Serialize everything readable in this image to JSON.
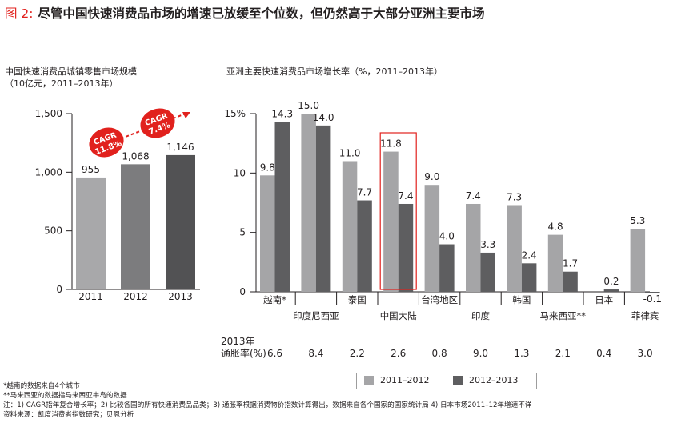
{
  "figure": {
    "label": "图 2:",
    "title": "尽管中国快速消费品市场的增速已放缓至个位数，但仍然高于大部分亚洲主要市场"
  },
  "left_chart": {
    "title_line1": "中国快速消费品城镇零售市场规模",
    "title_line2": "（10亿元，2011–2013年）",
    "cagr_badges": [
      {
        "text_line1": "CAGR",
        "text_line2": "11.8%"
      },
      {
        "text_line1": "CAGR",
        "text_line2": "7.4%"
      }
    ]
  },
  "right_chart": {
    "title": "亚洲主要快速消费品市场增长率（%，2011–2013年）",
    "inflation_label_line1": "2013年",
    "inflation_label_line2": "通胀率(%)",
    "legend": [
      {
        "label": "2011–2012",
        "color": "#a5a5a7"
      },
      {
        "label": "2012–2013",
        "color": "#5e5e60"
      }
    ]
  },
  "chart_data": [
    {
      "type": "bar",
      "categories": [
        "2011",
        "2012",
        "2013"
      ],
      "values": [
        955,
        1068,
        1146
      ],
      "value_labels": [
        "955",
        "1,068",
        "1,146"
      ],
      "colors": [
        "#a8a8aa",
        "#7c7c7e",
        "#525254"
      ],
      "yticks": [
        "0",
        "500",
        "1,000",
        "1,500"
      ],
      "ylim": [
        0,
        1500
      ]
    },
    {
      "type": "bar",
      "categories": [
        "越南*",
        "印度尼西亚",
        "泰国",
        "中国大陆",
        "台湾地区",
        "印度",
        "韩国",
        "马来西亚**",
        "日本",
        "菲律宾"
      ],
      "series": [
        {
          "name": "2011–2012",
          "color": "#a5a5a7",
          "values": [
            9.8,
            15.0,
            11.0,
            11.8,
            9.0,
            7.4,
            7.3,
            4.8,
            0.0,
            5.3
          ]
        },
        {
          "name": "2012–2013",
          "color": "#5e5e60",
          "values": [
            14.3,
            14.0,
            7.7,
            7.4,
            4.0,
            3.3,
            2.4,
            1.7,
            0.2,
            -0.1
          ]
        }
      ],
      "value_labels_1": [
        "9.8",
        "15.0",
        "11.0",
        "11.8",
        "9.0",
        "7.4",
        "7.3",
        "4.8",
        "",
        "5.3"
      ],
      "value_labels_2": [
        "14.3",
        "14.0",
        "7.7",
        "7.4",
        "4.0",
        "3.3",
        "2.4",
        "1.7",
        "0.2",
        "-0.1"
      ],
      "inflation_2013": [
        "6.6",
        "8.4",
        "2.2",
        "2.6",
        "0.8",
        "9.0",
        "1.3",
        "2.1",
        "0.4",
        "3.0"
      ],
      "yticks": [
        "0",
        "5",
        "10",
        "15%"
      ],
      "ylim": [
        0,
        15
      ],
      "highlight": "中国大陆"
    }
  ],
  "notes": [
    "*越南的数据来自4个城市",
    "**马来西亚的数据指马来西亚半岛的数据",
    "注：1) CAGR指年复合增长率；2) 比较各国的所有快速消费品品类；3) 通胀率根据消费物价指数计算得出，数据来自各个国家的国家统计局 4) 日本市场2011–12年增速不详",
    "资料来源：凯度消费者指数研究；贝恩分析"
  ]
}
